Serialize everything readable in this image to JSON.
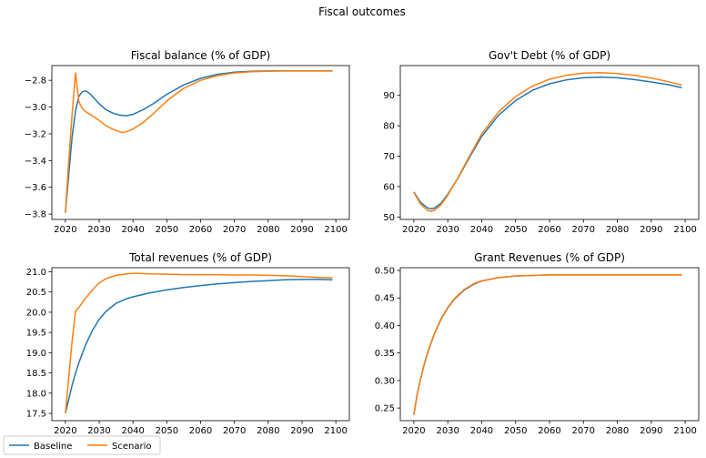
{
  "figure": {
    "suptitle": "Fiscal outcomes"
  },
  "legend": {
    "placement": "bottom-left",
    "entries": [
      {
        "name": "Baseline",
        "color": "#1f77b4"
      },
      {
        "name": "Scenario",
        "color": "#ff7f0e"
      }
    ]
  },
  "chart_data": [
    {
      "type": "line",
      "title": "Fiscal balance (% of GDP)",
      "xlabel": "",
      "ylabel": "",
      "xlim": [
        2016,
        2104
      ],
      "ylim": [
        -3.84,
        -2.69
      ],
      "xticks": [
        2020,
        2030,
        2040,
        2050,
        2060,
        2070,
        2080,
        2090,
        2100
      ],
      "yticks": [
        -3.8,
        -3.6,
        -3.4,
        -3.2,
        -3.0,
        -2.8
      ],
      "ytick_labels": [
        "−3.8",
        "−3.6",
        "−3.4",
        "−3.2",
        "−3.0",
        "−2.8"
      ],
      "series": [
        {
          "name": "Baseline",
          "color": "#1f77b4",
          "x": [
            2020,
            2021,
            2022,
            2023,
            2024,
            2025,
            2026,
            2027,
            2028,
            2030,
            2032,
            2034,
            2036,
            2038,
            2040,
            2043,
            2046,
            2050,
            2055,
            2060,
            2065,
            2070,
            2075,
            2080,
            2085,
            2090,
            2095,
            2099
          ],
          "y": [
            -3.79,
            -3.5,
            -3.22,
            -3.03,
            -2.92,
            -2.885,
            -2.88,
            -2.895,
            -2.92,
            -2.975,
            -3.02,
            -3.045,
            -3.06,
            -3.065,
            -3.055,
            -3.02,
            -2.975,
            -2.905,
            -2.835,
            -2.785,
            -2.755,
            -2.74,
            -2.733,
            -2.73,
            -2.73,
            -2.73,
            -2.73,
            -2.73
          ]
        },
        {
          "name": "Scenario",
          "color": "#ff7f0e",
          "x": [
            2020,
            2021,
            2022,
            2023,
            2024,
            2025,
            2026,
            2028,
            2030,
            2032,
            2034,
            2036,
            2037,
            2038,
            2040,
            2043,
            2046,
            2050,
            2055,
            2060,
            2065,
            2070,
            2075,
            2080,
            2085,
            2090,
            2095,
            2099
          ],
          "y": [
            -3.79,
            -3.4,
            -3.05,
            -2.745,
            -2.96,
            -3.01,
            -3.035,
            -3.065,
            -3.1,
            -3.14,
            -3.165,
            -3.185,
            -3.19,
            -3.185,
            -3.165,
            -3.115,
            -3.05,
            -2.955,
            -2.86,
            -2.8,
            -2.765,
            -2.745,
            -2.736,
            -2.732,
            -2.73,
            -2.73,
            -2.73,
            -2.73
          ]
        }
      ]
    },
    {
      "type": "line",
      "title": "Gov't Debt (% of GDP)",
      "xlabel": "",
      "ylabel": "",
      "xlim": [
        2016,
        2104
      ],
      "ylim": [
        49.2,
        99.8
      ],
      "xticks": [
        2020,
        2030,
        2040,
        2050,
        2060,
        2070,
        2080,
        2090,
        2100
      ],
      "yticks": [
        50,
        60,
        70,
        80,
        90
      ],
      "ytick_labels": [
        "50",
        "60",
        "70",
        "80",
        "90"
      ],
      "series": [
        {
          "name": "Baseline",
          "color": "#1f77b4",
          "x": [
            2020,
            2022,
            2024,
            2025,
            2026,
            2028,
            2030,
            2033,
            2036,
            2040,
            2045,
            2050,
            2055,
            2060,
            2065,
            2070,
            2075,
            2080,
            2085,
            2090,
            2095,
            2099
          ],
          "y": [
            58.2,
            54.8,
            53.0,
            52.7,
            52.9,
            54.5,
            57.5,
            62.8,
            68.8,
            76.5,
            83.5,
            88.3,
            91.7,
            93.8,
            95.1,
            95.8,
            96.0,
            95.8,
            95.2,
            94.4,
            93.5,
            92.5
          ]
        },
        {
          "name": "Scenario",
          "color": "#ff7f0e",
          "x": [
            2020,
            2022,
            2024,
            2025,
            2026,
            2028,
            2030,
            2033,
            2036,
            2040,
            2045,
            2050,
            2055,
            2060,
            2065,
            2070,
            2075,
            2080,
            2085,
            2090,
            2095,
            2099
          ],
          "y": [
            58.1,
            54.2,
            52.2,
            51.9,
            52.2,
            54.0,
            57.2,
            62.9,
            69.2,
            77.3,
            84.6,
            89.6,
            93.1,
            95.3,
            96.6,
            97.3,
            97.5,
            97.2,
            96.6,
            95.7,
            94.5,
            93.4
          ]
        }
      ]
    },
    {
      "type": "line",
      "title": "Total revenues (% of GDP)",
      "xlabel": "",
      "ylabel": "",
      "xlim": [
        2016,
        2104
      ],
      "ylim": [
        17.32,
        21.1
      ],
      "xticks": [
        2020,
        2030,
        2040,
        2050,
        2060,
        2070,
        2080,
        2090,
        2100
      ],
      "yticks": [
        17.5,
        18.0,
        18.5,
        19.0,
        19.5,
        20.0,
        20.5,
        21.0
      ],
      "ytick_labels": [
        "17.5",
        "18.0",
        "18.5",
        "19.0",
        "19.5",
        "20.0",
        "20.5",
        "21.0"
      ],
      "series": [
        {
          "name": "Baseline",
          "color": "#1f77b4",
          "x": [
            2020,
            2021,
            2022,
            2023,
            2024,
            2026,
            2028,
            2030,
            2032,
            2035,
            2038,
            2040,
            2045,
            2050,
            2055,
            2060,
            2065,
            2070,
            2075,
            2080,
            2085,
            2090,
            2095,
            2099
          ],
          "y": [
            17.5,
            17.85,
            18.2,
            18.5,
            18.75,
            19.2,
            19.55,
            19.82,
            20.02,
            20.22,
            20.33,
            20.38,
            20.48,
            20.55,
            20.61,
            20.66,
            20.7,
            20.73,
            20.76,
            20.78,
            20.8,
            20.81,
            20.81,
            20.8
          ]
        },
        {
          "name": "Scenario",
          "color": "#ff7f0e",
          "x": [
            2020,
            2021,
            2022,
            2023,
            2024,
            2026,
            2028,
            2030,
            2032,
            2035,
            2038,
            2040,
            2042,
            2045,
            2050,
            2055,
            2060,
            2065,
            2070,
            2075,
            2080,
            2085,
            2090,
            2095,
            2099
          ],
          "y": [
            17.5,
            18.4,
            19.3,
            20.02,
            20.12,
            20.35,
            20.55,
            20.72,
            20.83,
            20.91,
            20.95,
            20.96,
            20.96,
            20.95,
            20.94,
            20.93,
            20.93,
            20.93,
            20.92,
            20.92,
            20.91,
            20.9,
            20.88,
            20.86,
            20.85
          ]
        }
      ]
    },
    {
      "type": "line",
      "title": "Grant Revenues (% of GDP)",
      "xlabel": "",
      "ylabel": "",
      "xlim": [
        2016,
        2104
      ],
      "ylim": [
        0.227,
        0.505
      ],
      "xticks": [
        2020,
        2030,
        2040,
        2050,
        2060,
        2070,
        2080,
        2090,
        2100
      ],
      "yticks": [
        0.25,
        0.3,
        0.35,
        0.4,
        0.45,
        0.5
      ],
      "ytick_labels": [
        "0.25",
        "0.30",
        "0.35",
        "0.40",
        "0.45",
        "0.50"
      ],
      "series": [
        {
          "name": "Baseline",
          "color": "#1f77b4",
          "x": [
            2020,
            2021,
            2022,
            2023,
            2024,
            2026,
            2028,
            2030,
            2032,
            2035,
            2038,
            2040,
            2045,
            2050,
            2055,
            2060,
            2070,
            2080,
            2090,
            2099
          ],
          "y": [
            0.238,
            0.275,
            0.303,
            0.328,
            0.349,
            0.384,
            0.411,
            0.432,
            0.448,
            0.465,
            0.476,
            0.481,
            0.487,
            0.49,
            0.491,
            0.492,
            0.492,
            0.492,
            0.492,
            0.492
          ]
        },
        {
          "name": "Scenario",
          "color": "#ff7f0e",
          "x": [
            2020,
            2021,
            2022,
            2023,
            2024,
            2026,
            2028,
            2030,
            2032,
            2035,
            2038,
            2040,
            2045,
            2050,
            2055,
            2060,
            2070,
            2080,
            2090,
            2099
          ],
          "y": [
            0.238,
            0.276,
            0.304,
            0.329,
            0.35,
            0.385,
            0.412,
            0.433,
            0.449,
            0.466,
            0.477,
            0.481,
            0.487,
            0.49,
            0.491,
            0.492,
            0.492,
            0.492,
            0.492,
            0.492
          ]
        }
      ]
    }
  ]
}
